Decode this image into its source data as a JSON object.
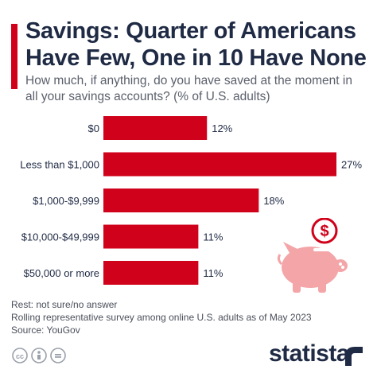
{
  "title": "Savings: Quarter of Americans Have Few, One in 10 Have None",
  "subtitle": "How much, if anything, do you have saved at the moment in all your savings accounts? (% of U.S. adults)",
  "footnotes": {
    "rest": "Rest: not sure/no answer",
    "survey": "Rolling representative survey among online U.S. adults as of May 2023",
    "source": "Source: YouGov"
  },
  "brand": {
    "name": "statista"
  },
  "colors": {
    "bar": "#d0021b",
    "title": "#1f2a44",
    "piggy": "#f4a5a8",
    "coin": "#d0021b"
  },
  "icons": {
    "piggy": "piggy-bank-icon",
    "coin": "dollar-coin-icon",
    "cc": "creative-commons-icon"
  },
  "chart_data": {
    "type": "bar",
    "orientation": "horizontal",
    "categories": [
      "$0",
      "Less than $1,000",
      "$1,000-$9,999",
      "$10,000-$49,999",
      "$50,000 or more"
    ],
    "values": [
      12,
      27,
      18,
      11,
      11
    ],
    "value_labels": [
      "12%",
      "27%",
      "18%",
      "11%",
      "11%"
    ],
    "title": "Savings: Quarter of Americans Have Few, One in 10 Have None",
    "xlim": [
      0,
      27
    ],
    "grid": false
  }
}
